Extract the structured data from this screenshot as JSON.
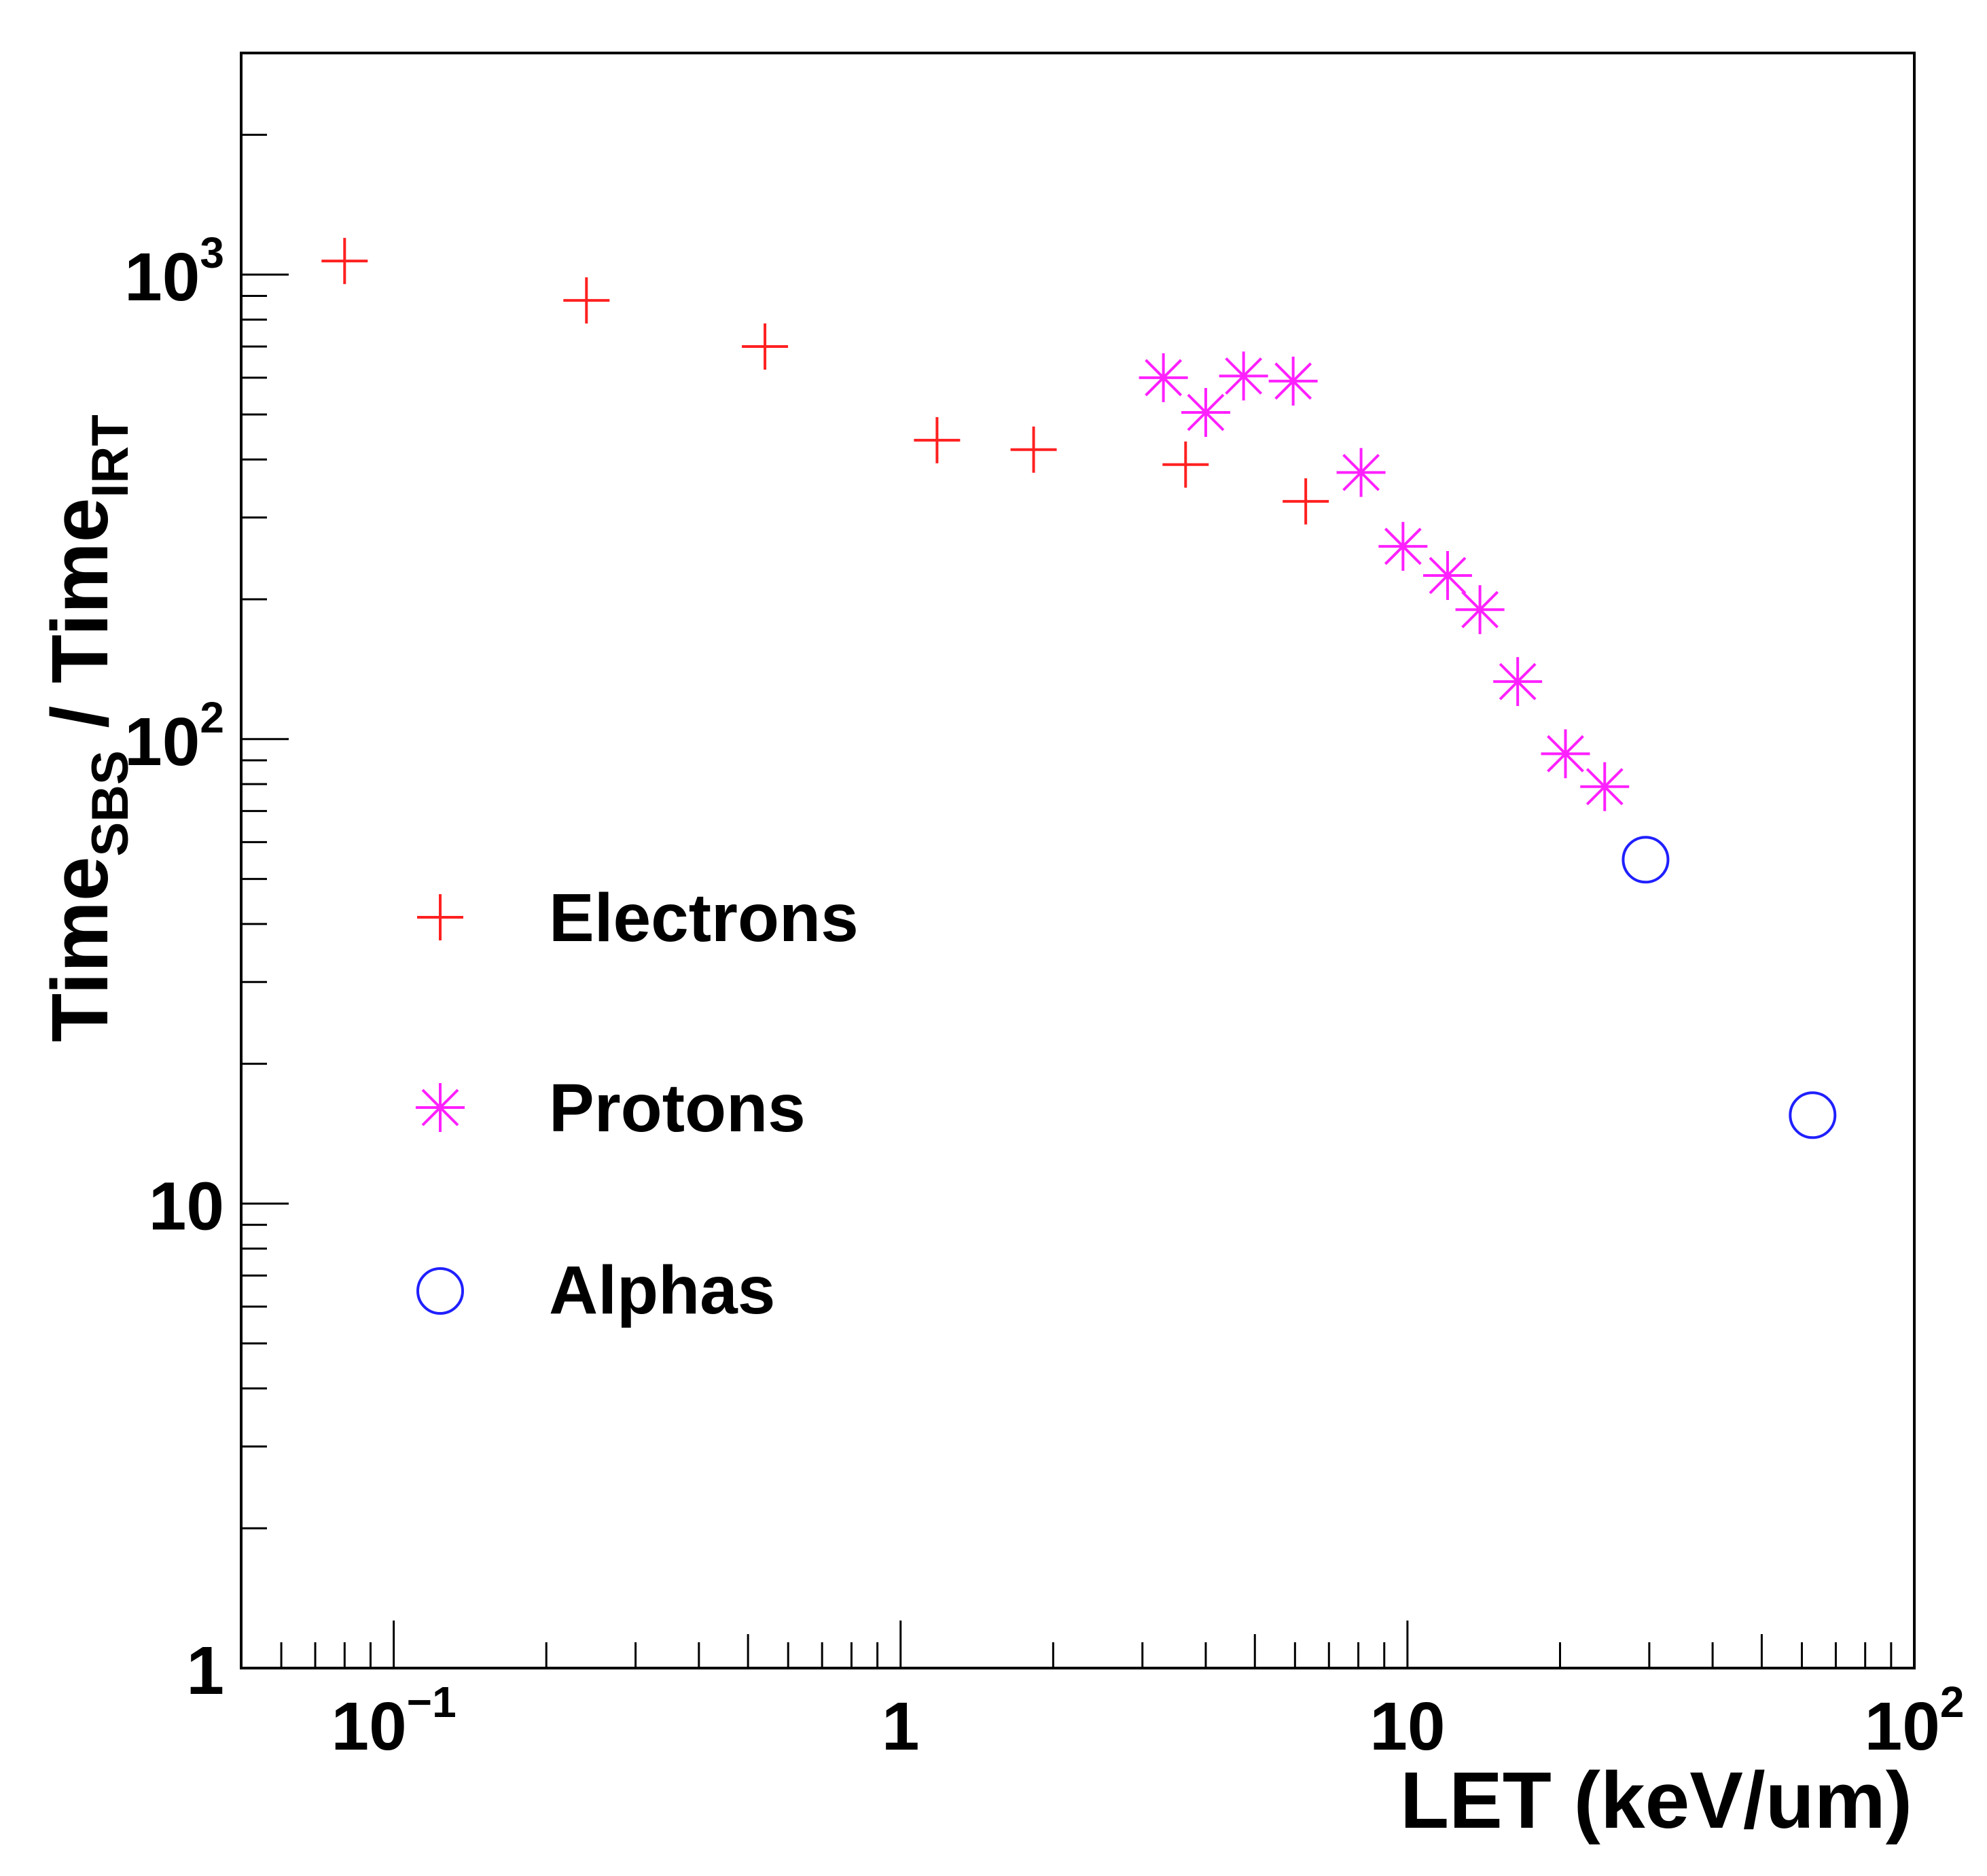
{
  "chart_data": {
    "type": "scatter",
    "xscale": "log",
    "yscale": "log",
    "xlim": [
      0.05,
      100
    ],
    "ylim": [
      1,
      3000
    ],
    "xlabel": "LET (keV/um)",
    "ylabel": {
      "main": "Time",
      "numerator_sub": "SBS",
      "separator": " / ",
      "denominator": "Time",
      "denominator_sub": "IRT"
    },
    "x_ticks": [
      {
        "value": 0.1,
        "base": "10",
        "exp": "−1"
      },
      {
        "value": 1,
        "base": "1",
        "exp": ""
      },
      {
        "value": 10,
        "base": "10",
        "exp": ""
      },
      {
        "value": 100,
        "base": "10",
        "exp": "2"
      }
    ],
    "y_ticks": [
      {
        "value": 1,
        "base": "1",
        "exp": ""
      },
      {
        "value": 10,
        "base": "10",
        "exp": ""
      },
      {
        "value": 100,
        "base": "10",
        "exp": "2"
      },
      {
        "value": 1000,
        "base": "10",
        "exp": "3"
      }
    ],
    "legend_position": "middle-left",
    "series": [
      {
        "name": "Electrons",
        "marker": "plus",
        "color": "#ff2020",
        "points": [
          {
            "x": 0.08,
            "y": 1070
          },
          {
            "x": 0.24,
            "y": 880
          },
          {
            "x": 0.54,
            "y": 700
          },
          {
            "x": 1.18,
            "y": 440
          },
          {
            "x": 1.83,
            "y": 420
          },
          {
            "x": 3.65,
            "y": 390
          },
          {
            "x": 6.3,
            "y": 325
          }
        ]
      },
      {
        "name": "Protons",
        "marker": "asterisk",
        "color": "#ff20ff",
        "points": [
          {
            "x": 3.3,
            "y": 600
          },
          {
            "x": 4.0,
            "y": 505
          },
          {
            "x": 4.75,
            "y": 605
          },
          {
            "x": 5.95,
            "y": 590
          },
          {
            "x": 8.1,
            "y": 375
          },
          {
            "x": 9.8,
            "y": 260
          },
          {
            "x": 12.0,
            "y": 225
          },
          {
            "x": 13.9,
            "y": 190
          },
          {
            "x": 16.5,
            "y": 133
          },
          {
            "x": 20.5,
            "y": 93
          },
          {
            "x": 24.5,
            "y": 79
          }
        ]
      },
      {
        "name": "Alphas",
        "marker": "open-circle",
        "color": "#2020ff",
        "points": [
          {
            "x": 29.5,
            "y": 55
          },
          {
            "x": 63,
            "y": 15.5
          }
        ]
      }
    ]
  }
}
